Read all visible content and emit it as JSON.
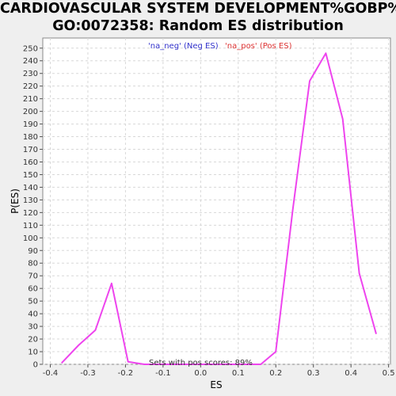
{
  "chart_data": {
    "type": "line",
    "title_line1": "CARDIOVASCULAR SYSTEM DEVELOPMENT%GOBP%",
    "title_line2": "GO:0072358: Random ES distribution",
    "xlabel": "ES",
    "ylabel": "P(ES)",
    "xlim": [
      -0.42,
      0.505
    ],
    "ylim": [
      0,
      258
    ],
    "xticks": [
      "-0.4",
      "-0.3",
      "-0.2",
      "-0.1",
      "0.0",
      "0.1",
      "0.2",
      "0.3",
      "0.4",
      "0.5"
    ],
    "yticks": [
      "0",
      "10",
      "20",
      "30",
      "40",
      "50",
      "60",
      "70",
      "80",
      "90",
      "100",
      "110",
      "120",
      "130",
      "140",
      "150",
      "160",
      "170",
      "180",
      "190",
      "200",
      "210",
      "220",
      "230",
      "240",
      "250"
    ],
    "grid": true,
    "legend": [
      {
        "label": "'na_neg' (Neg ES)",
        "color": "#3333cc"
      },
      {
        "label": "'na_pos' (Pos ES)",
        "color": "#dd3333"
      }
    ],
    "series": [
      {
        "color": "#ee44ee",
        "x": [
          -0.37,
          -0.325,
          -0.28,
          -0.237,
          -0.193,
          -0.15,
          -0.1,
          -0.05,
          0.0,
          0.05,
          0.1,
          0.16,
          0.2,
          0.245,
          0.29,
          0.333,
          0.378,
          0.422,
          0.467
        ],
        "y": [
          1,
          15,
          27,
          64,
          2,
          0,
          0,
          0,
          0,
          0,
          0,
          0,
          10,
          122,
          224,
          246,
          194,
          72,
          24
        ]
      }
    ],
    "annotation": "Sets with pos scores: 89%"
  }
}
